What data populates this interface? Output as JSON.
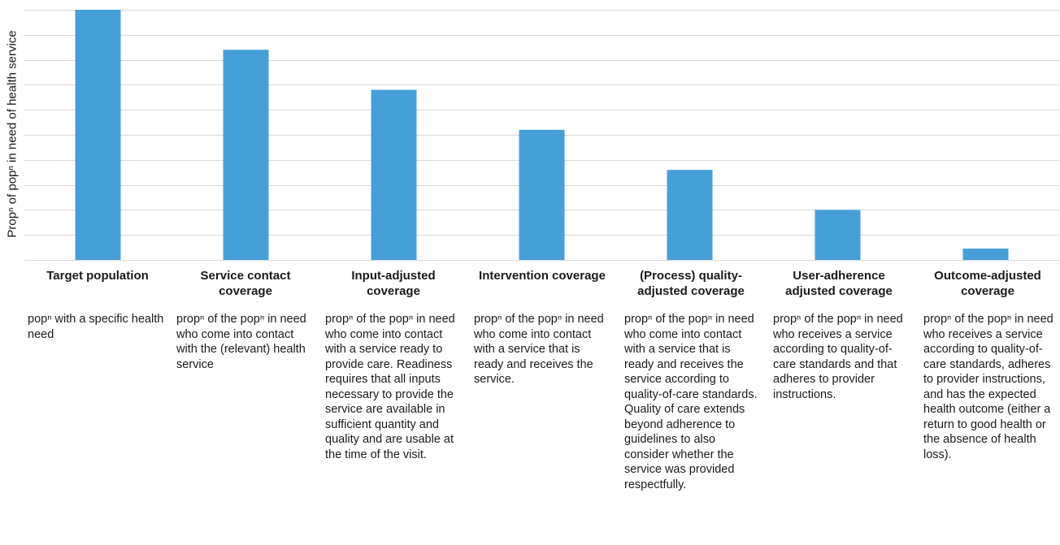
{
  "chart_data": {
    "type": "bar",
    "ylabel": "Propⁿ of popⁿ in need of health service",
    "xlabel": "",
    "title": "",
    "ylim": [
      0,
      100
    ],
    "grid": true,
    "legend": "none",
    "bar_color": "#479fd8",
    "grid_color": "#d9d9d9",
    "categories": [
      "Target population",
      "Service contact coverage",
      "Input-adjusted coverage",
      "Intervention coverage",
      "(Process) quality-adjusted coverage",
      "User-adherence adjusted coverage",
      "Outcome-adjusted coverage"
    ],
    "values": [
      100,
      84,
      68,
      52,
      36,
      20,
      4.5
    ],
    "descriptions": [
      "popⁿ with a specific health need",
      "propⁿ of the popⁿ in need who come into contact with the (relevant) health service",
      "propⁿ of the popⁿ in need who come into contact with a service ready to provide care. Readiness requires that all inputs necessary to provide the service are available in sufficient quantity and quality and are usable at the time of the visit.",
      "propⁿ of the popⁿ in need who come into contact with a service that is ready and receives the service.",
      "propⁿ of the popⁿ  in need who come into contact with a service that is ready and receives the service according to quality-of-care standards. Quality of care extends beyond adherence to guidelines to also consider whether the service was provided respectfully.",
      "propⁿ of the popⁿ in need who receives a service according to quality-of-care standards and that adheres to provider instructions.",
      "propⁿ of the popⁿ in need who receives a service according to quality-of-care standards, adheres to provider instructions, and has the expected health outcome (either a return to good health or the absence of health loss)."
    ]
  }
}
